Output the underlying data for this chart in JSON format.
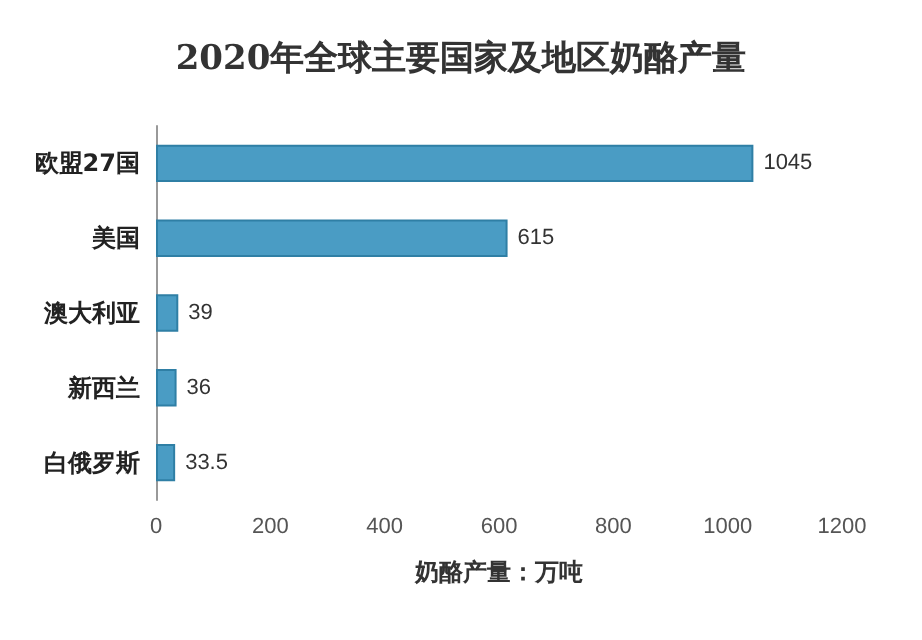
{
  "chart_data": {
    "type": "bar",
    "orientation": "horizontal",
    "title": "2020年全球主要国家及地区奶酪产量",
    "xlabel": "奶酪产量：万吨",
    "categories": [
      "欧盟27国",
      "美国",
      "澳大利亚",
      "新西兰",
      "白俄罗斯"
    ],
    "values": [
      1045,
      615,
      39,
      36,
      33.5
    ],
    "color": "#4a9cc4",
    "xlim": [
      0,
      1200
    ],
    "xticks": [
      0,
      200,
      400,
      600,
      800,
      1000,
      1200
    ],
    "grid": false,
    "data_labels": true
  }
}
